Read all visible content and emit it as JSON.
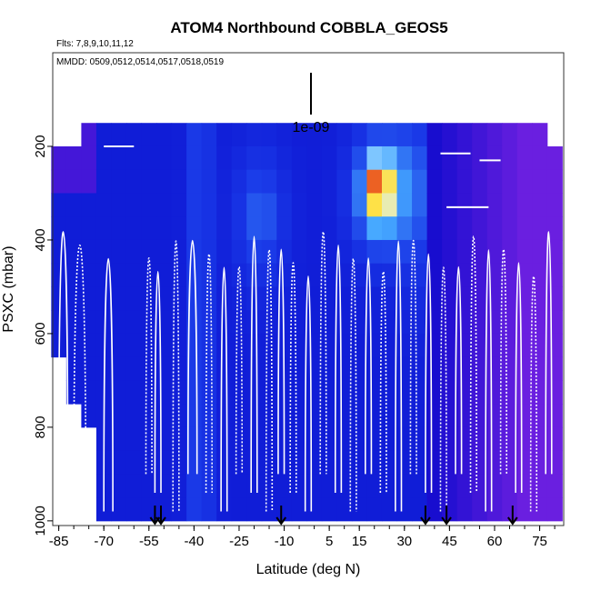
{
  "chart_data": {
    "type": "heatmap",
    "title": "ATOM4 Northbound COBBLA_GEOS5",
    "flights_label": "Flts: 7,8,9,10,11,12",
    "dates_label": "MMDD: 0509,0512,0514,0517,0518,0519",
    "scale_label": "1e-09",
    "xlabel": "Latitude (deg N)",
    "ylabel": "PSXC (mbar)",
    "xlim": [
      -87,
      83
    ],
    "ylim": [
      1010,
      0
    ],
    "x_tick_labels": [
      "-85",
      "-70",
      "-55",
      "-40",
      "-25",
      "-10",
      "5",
      "15",
      "30",
      "45",
      "60",
      "75"
    ],
    "x_tick_values": [
      -85,
      -70,
      -55,
      -40,
      -25,
      -10,
      5,
      15,
      30,
      45,
      60,
      75
    ],
    "y_tick_labels": [
      "200",
      "400",
      "600",
      "800",
      "1000"
    ],
    "y_tick_values": [
      200,
      400,
      600,
      800,
      1000
    ],
    "grid": false,
    "colors": {
      "background_low": "#0a0acc",
      "purple": "#6a1fe0",
      "light_blue": "#45a8ff",
      "cyan": "#d8f4ff",
      "yellow": "#ffe040",
      "red": "#e01010",
      "flight_track": "#ffffff"
    },
    "field": {
      "lat_bins": [
        -85,
        -80,
        -75,
        -70,
        -65,
        -60,
        -55,
        -50,
        -45,
        -40,
        -35,
        -30,
        -25,
        -20,
        -15,
        -10,
        -5,
        0,
        5,
        10,
        15,
        20,
        25,
        30,
        35,
        40,
        45,
        50,
        55,
        60,
        65,
        70,
        75,
        80
      ],
      "pressure_bins": [
        175,
        225,
        275,
        325,
        375,
        425,
        475,
        525,
        575,
        625,
        675,
        725,
        775,
        825,
        875,
        925,
        975
      ],
      "description_levels": "0=dark blue, 0.3=blue, 0.5=light blue, 0.7=cyan, 0.85=yellow, 1=red"
    },
    "arrow_latitudes": [
      -53,
      -51,
      -11,
      37,
      44,
      66
    ],
    "track_segments_lat": [
      [
        -85,
        -82
      ],
      [
        -80,
        -76
      ],
      [
        -70,
        -67
      ],
      [
        -56,
        -54
      ],
      [
        -53,
        -51
      ],
      [
        -47,
        -45
      ],
      [
        -42,
        -39
      ],
      [
        -36,
        -34
      ],
      [
        -31,
        -29
      ],
      [
        -26,
        -24
      ],
      [
        -21,
        -19
      ],
      [
        -16,
        -14
      ],
      [
        -12,
        -10
      ],
      [
        -8,
        -6
      ],
      [
        -3,
        -1
      ],
      [
        2,
        4
      ],
      [
        7,
        9
      ],
      [
        12,
        14
      ],
      [
        17,
        19
      ],
      [
        22,
        24
      ],
      [
        27,
        29
      ],
      [
        32,
        34
      ],
      [
        37,
        39
      ],
      [
        42,
        44
      ],
      [
        47,
        49
      ],
      [
        52,
        54
      ],
      [
        57,
        59
      ],
      [
        62,
        64
      ],
      [
        67,
        69
      ],
      [
        72,
        74
      ],
      [
        77,
        79
      ]
    ]
  }
}
